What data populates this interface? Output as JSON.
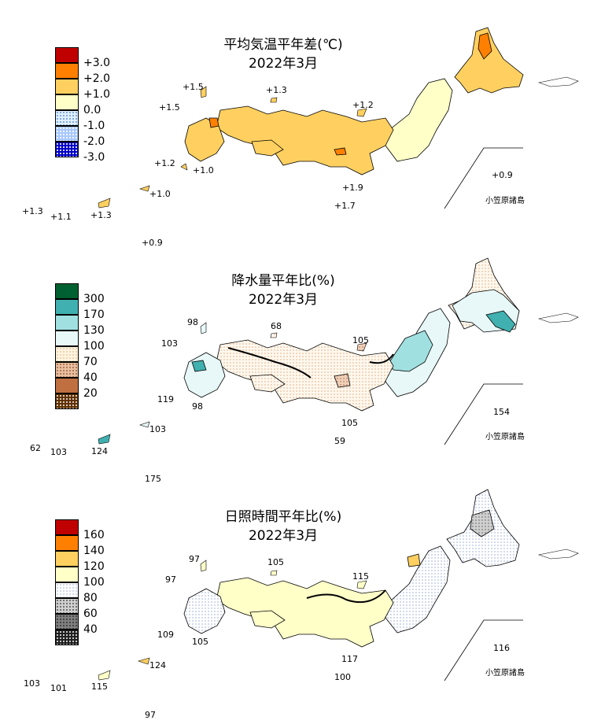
{
  "colors": {
    "land_outline": "#000000",
    "anomaly_line": "#000000"
  },
  "panels": [
    {
      "title": "平均気温平年差(℃)",
      "subtitle": "2022年3月",
      "legend": [
        {
          "label": "+3.0",
          "color": "#c00000",
          "pattern": "solid"
        },
        {
          "label": "+2.0",
          "color": "#ff8000",
          "pattern": "solid"
        },
        {
          "label": "+1.0",
          "color": "#ffd060",
          "pattern": "solid"
        },
        {
          "label": "0.0",
          "color": "#ffffc8",
          "pattern": "solid"
        },
        {
          "label": "-1.0",
          "color": "#e0f0ff",
          "pattern": "dots-light"
        },
        {
          "label": "-2.0",
          "color": "#a8c8ff",
          "pattern": "dots"
        },
        {
          "label": "-3.0",
          "color": "#0000c8",
          "pattern": "dots-dense"
        }
      ],
      "labels": [
        "+1.5",
        "+1.3",
        "+1.5",
        "+1.2",
        "+1.2",
        "+1.0",
        "+1.9",
        "+1.7",
        "+1.0",
        "+1.3",
        "+1.1",
        "+1.3",
        "+0.9",
        "+0.9"
      ],
      "ogasawara": "小笠原諸島"
    },
    {
      "title": "降水量平年比(%)",
      "subtitle": "2022年3月",
      "legend": [
        {
          "label": "300",
          "color": "#006030",
          "pattern": "solid"
        },
        {
          "label": "170",
          "color": "#40b0b0",
          "pattern": "solid"
        },
        {
          "label": "130",
          "color": "#a0e0e0",
          "pattern": "solid"
        },
        {
          "label": "100",
          "color": "#e8f8f8",
          "pattern": "solid"
        },
        {
          "label": "70",
          "color": "#fff4e0",
          "pattern": "dots-light"
        },
        {
          "label": "40",
          "color": "#e8c0a0",
          "pattern": "dots"
        },
        {
          "label": "20",
          "color": "#c07040",
          "pattern": "solid"
        },
        {
          "label": "",
          "color": "#603000",
          "pattern": "dots-dense"
        }
      ],
      "labels": [
        "98",
        "68",
        "103",
        "105",
        "119",
        "98",
        "105",
        "59",
        "103",
        "62",
        "103",
        "124",
        "175",
        "154"
      ],
      "ogasawara": "小笠原諸島"
    },
    {
      "title": "日照時間平年比(%)",
      "subtitle": "2022年3月",
      "legend": [
        {
          "label": "160",
          "color": "#c00000",
          "pattern": "solid"
        },
        {
          "label": "140",
          "color": "#ff8000",
          "pattern": "solid"
        },
        {
          "label": "120",
          "color": "#ffd060",
          "pattern": "solid"
        },
        {
          "label": "100",
          "color": "#ffffc8",
          "pattern": "solid"
        },
        {
          "label": "80",
          "color": "#ffffff",
          "pattern": "dots-light"
        },
        {
          "label": "60",
          "color": "#d0d0d0",
          "pattern": "dots"
        },
        {
          "label": "40",
          "color": "#808080",
          "pattern": "dots"
        },
        {
          "label": "",
          "color": "#202020",
          "pattern": "dots-dense"
        }
      ],
      "labels": [
        "97",
        "105",
        "97",
        "115",
        "109",
        "105",
        "117",
        "100",
        "124",
        "103",
        "101",
        "115",
        "97",
        "116"
      ],
      "ogasawara": "小笠原諸島"
    }
  ]
}
